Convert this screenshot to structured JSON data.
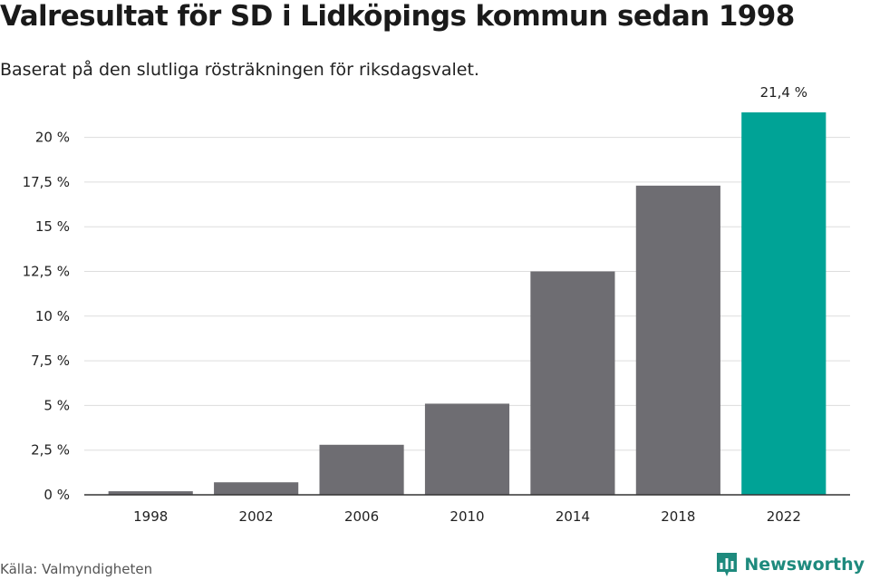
{
  "title": "Valresultat för SD i Lidköpings kommun sedan 1998",
  "subtitle": "Baserat på den slutliga rösträkningen för riksdagsvalet.",
  "source": "Källa: Valmyndigheten",
  "brand": {
    "name": "Newsworthy",
    "icon": "newsworthy-logo-icon",
    "color": "#1e8a7d"
  },
  "colors": {
    "bar": "#6e6d72",
    "highlight": "#00a396",
    "grid": "#dddddd",
    "axis": "#333333"
  },
  "chart_data": {
    "type": "bar",
    "categories": [
      "1998",
      "2002",
      "2006",
      "2010",
      "2014",
      "2018",
      "2022"
    ],
    "values": [
      0.2,
      0.7,
      2.8,
      5.1,
      12.5,
      17.3,
      21.4
    ],
    "highlight_index": 6,
    "data_labels": [
      {
        "index": 6,
        "text": "21,4 %"
      }
    ],
    "yticks": [
      0,
      2.5,
      5,
      7.5,
      10,
      12.5,
      15,
      17.5,
      20
    ],
    "ytick_labels": [
      "0 %",
      "2,5 %",
      "5 %",
      "7,5 %",
      "10 %",
      "12,5 %",
      "15 %",
      "17,5 %",
      "20 %"
    ],
    "ylim": [
      0,
      21.4
    ],
    "grid": true,
    "xlabel": "",
    "ylabel": ""
  }
}
